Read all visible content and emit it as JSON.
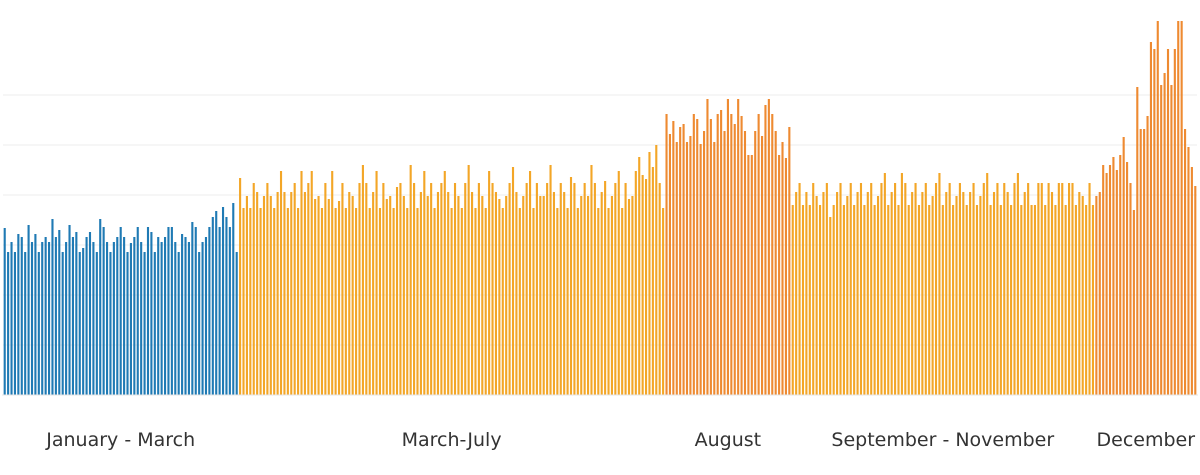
{
  "chart_data": {
    "type": "bar",
    "title": "",
    "xlabel": "",
    "ylabel": "",
    "ylim": [
      0,
      390
    ],
    "grid": true,
    "legend": "none",
    "groups": [
      {
        "label": "January - March",
        "color": "#1f7ab4",
        "values": [
          167,
          143,
          153,
          143,
          161,
          158,
          143,
          170,
          153,
          161,
          143,
          153,
          158,
          153,
          176,
          158,
          165,
          143,
          153,
          170,
          158,
          163,
          143,
          147,
          158,
          163,
          153,
          143,
          176,
          168,
          153,
          143,
          153,
          158,
          168,
          158,
          143,
          152,
          158,
          168,
          153,
          143,
          168,
          163,
          143,
          158,
          153,
          158,
          168,
          168,
          153,
          143,
          161,
          158,
          153,
          173,
          168,
          143,
          153,
          158,
          168,
          178,
          184,
          168,
          188,
          178,
          168,
          192,
          143
        ]
      },
      {
        "label": "March-July",
        "color": "#f3a627",
        "values": [
          217,
          187,
          199,
          187,
          212,
          203,
          187,
          199,
          212,
          199,
          187,
          203,
          224,
          203,
          187,
          203,
          212,
          187,
          224,
          203,
          212,
          224,
          196,
          199,
          187,
          212,
          196,
          224,
          187,
          194,
          212,
          187,
          203,
          199,
          187,
          212,
          230,
          212,
          187,
          203,
          224,
          187,
          212,
          196,
          199,
          187,
          208,
          212,
          199,
          187,
          230,
          212,
          187,
          203,
          224,
          199,
          212,
          187,
          203,
          212,
          224,
          203,
          187,
          212,
          199,
          187,
          212,
          230,
          203,
          187,
          212,
          199,
          187,
          224,
          212,
          203,
          196,
          187,
          199,
          212,
          228,
          203,
          187,
          199,
          212,
          224,
          187,
          212,
          199,
          199,
          212,
          230,
          203,
          187,
          212,
          203,
          187,
          218,
          212,
          187,
          199,
          212,
          199,
          230,
          212,
          187,
          203,
          214,
          187,
          199,
          212,
          224,
          187,
          212,
          196,
          199,
          224,
          238,
          220,
          216,
          243,
          228,
          250,
          212,
          187
        ]
      },
      {
        "label": "August",
        "color": "#ee8a31",
        "values": [
          281,
          261,
          274,
          253,
          268,
          271,
          253,
          259,
          281,
          276,
          251,
          264,
          296,
          276,
          253,
          281,
          285,
          264,
          296,
          281,
          271,
          296,
          279,
          264,
          240,
          240,
          264,
          281,
          259,
          290,
          296,
          281,
          264,
          240,
          253,
          237,
          268
        ]
      },
      {
        "label": "September - November",
        "color": "#f3a627",
        "values": [
          190,
          203,
          212,
          190,
          203,
          190,
          212,
          199,
          190,
          203,
          212,
          178,
          190,
          203,
          212,
          190,
          199,
          212,
          190,
          203,
          212,
          190,
          203,
          212,
          190,
          199,
          212,
          222,
          190,
          203,
          212,
          190,
          222,
          212,
          190,
          203,
          212,
          190,
          203,
          212,
          190,
          199,
          212,
          222,
          190,
          203,
          212,
          190,
          199,
          212,
          203,
          190,
          203,
          212,
          190,
          199,
          212,
          222,
          190,
          203,
          212,
          190,
          212,
          203,
          190,
          212,
          222,
          190,
          203,
          212,
          190,
          190,
          212,
          212,
          190,
          212,
          203,
          190,
          212,
          212,
          190,
          212,
          212,
          190,
          203,
          199,
          190,
          212,
          190
        ]
      },
      {
        "label": "December",
        "color": "#ee8a31",
        "values": [
          199,
          203,
          230,
          222,
          230,
          238,
          225,
          240,
          258,
          233,
          212,
          185,
          308,
          266,
          266,
          279,
          353,
          346,
          374,
          310,
          322,
          346,
          310,
          346,
          374,
          374,
          266,
          248,
          228,
          209
        ]
      }
    ]
  }
}
